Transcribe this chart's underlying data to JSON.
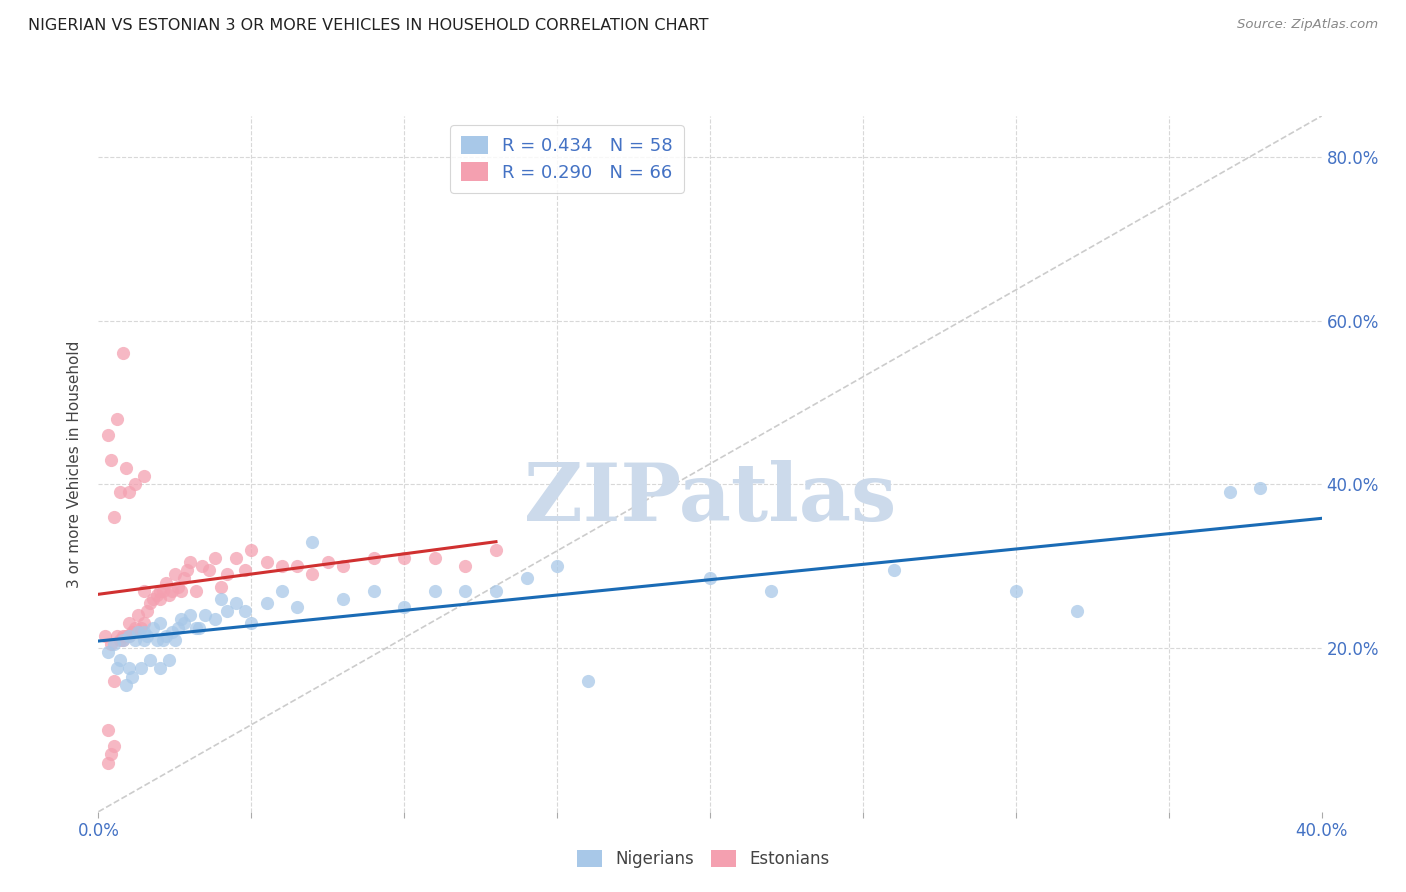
{
  "title": "NIGERIAN VS ESTONIAN 3 OR MORE VEHICLES IN HOUSEHOLD CORRELATION CHART",
  "source": "Source: ZipAtlas.com",
  "ylabel": "3 or more Vehicles in Household",
  "xlim": [
    0.0,
    0.4
  ],
  "ylim": [
    0.0,
    0.85
  ],
  "nigerian_R": 0.434,
  "nigerian_N": 58,
  "estonian_R": 0.29,
  "estonian_N": 66,
  "nigerian_color": "#a8c8e8",
  "estonian_color": "#f4a0b0",
  "nigerian_line_color": "#1a6bb5",
  "estonian_line_color": "#d03030",
  "diagonal_color": "#cccccc",
  "background_color": "#ffffff",
  "grid_color": "#d8d8d8",
  "watermark": "ZIPatlas",
  "watermark_color": "#ccdaeb",
  "nigerian_x": [
    0.003,
    0.005,
    0.006,
    0.007,
    0.008,
    0.009,
    0.01,
    0.01,
    0.011,
    0.012,
    0.013,
    0.014,
    0.015,
    0.015,
    0.016,
    0.017,
    0.018,
    0.019,
    0.02,
    0.02,
    0.021,
    0.022,
    0.023,
    0.024,
    0.025,
    0.026,
    0.027,
    0.028,
    0.03,
    0.032,
    0.033,
    0.035,
    0.038,
    0.04,
    0.042,
    0.045,
    0.048,
    0.05,
    0.055,
    0.06,
    0.065,
    0.07,
    0.08,
    0.09,
    0.1,
    0.11,
    0.12,
    0.13,
    0.14,
    0.15,
    0.16,
    0.2,
    0.22,
    0.26,
    0.3,
    0.32,
    0.37,
    0.38
  ],
  "nigerian_y": [
    0.195,
    0.205,
    0.175,
    0.185,
    0.21,
    0.155,
    0.175,
    0.215,
    0.165,
    0.21,
    0.22,
    0.175,
    0.22,
    0.21,
    0.215,
    0.185,
    0.225,
    0.21,
    0.175,
    0.23,
    0.21,
    0.215,
    0.185,
    0.22,
    0.21,
    0.225,
    0.235,
    0.23,
    0.24,
    0.225,
    0.225,
    0.24,
    0.235,
    0.26,
    0.245,
    0.255,
    0.245,
    0.23,
    0.255,
    0.27,
    0.25,
    0.33,
    0.26,
    0.27,
    0.25,
    0.27,
    0.27,
    0.27,
    0.285,
    0.3,
    0.16,
    0.285,
    0.27,
    0.295,
    0.27,
    0.245,
    0.39,
    0.395
  ],
  "estonian_x": [
    0.002,
    0.003,
    0.003,
    0.004,
    0.004,
    0.005,
    0.005,
    0.006,
    0.007,
    0.008,
    0.008,
    0.009,
    0.01,
    0.01,
    0.011,
    0.012,
    0.013,
    0.014,
    0.015,
    0.015,
    0.016,
    0.017,
    0.018,
    0.019,
    0.02,
    0.02,
    0.021,
    0.022,
    0.023,
    0.024,
    0.025,
    0.026,
    0.027,
    0.028,
    0.029,
    0.03,
    0.032,
    0.034,
    0.036,
    0.038,
    0.04,
    0.042,
    0.045,
    0.048,
    0.05,
    0.055,
    0.06,
    0.065,
    0.07,
    0.075,
    0.08,
    0.09,
    0.1,
    0.11,
    0.12,
    0.13,
    0.005,
    0.007,
    0.009,
    0.003,
    0.006,
    0.004,
    0.008,
    0.01,
    0.012,
    0.015
  ],
  "estonian_y": [
    0.215,
    0.1,
    0.06,
    0.07,
    0.205,
    0.08,
    0.16,
    0.215,
    0.21,
    0.21,
    0.215,
    0.215,
    0.215,
    0.23,
    0.22,
    0.225,
    0.24,
    0.225,
    0.23,
    0.27,
    0.245,
    0.255,
    0.26,
    0.265,
    0.26,
    0.27,
    0.27,
    0.28,
    0.265,
    0.27,
    0.29,
    0.275,
    0.27,
    0.285,
    0.295,
    0.305,
    0.27,
    0.3,
    0.295,
    0.31,
    0.275,
    0.29,
    0.31,
    0.295,
    0.32,
    0.305,
    0.3,
    0.3,
    0.29,
    0.305,
    0.3,
    0.31,
    0.31,
    0.31,
    0.3,
    0.32,
    0.36,
    0.39,
    0.42,
    0.46,
    0.48,
    0.43,
    0.56,
    0.39,
    0.4,
    0.41
  ]
}
